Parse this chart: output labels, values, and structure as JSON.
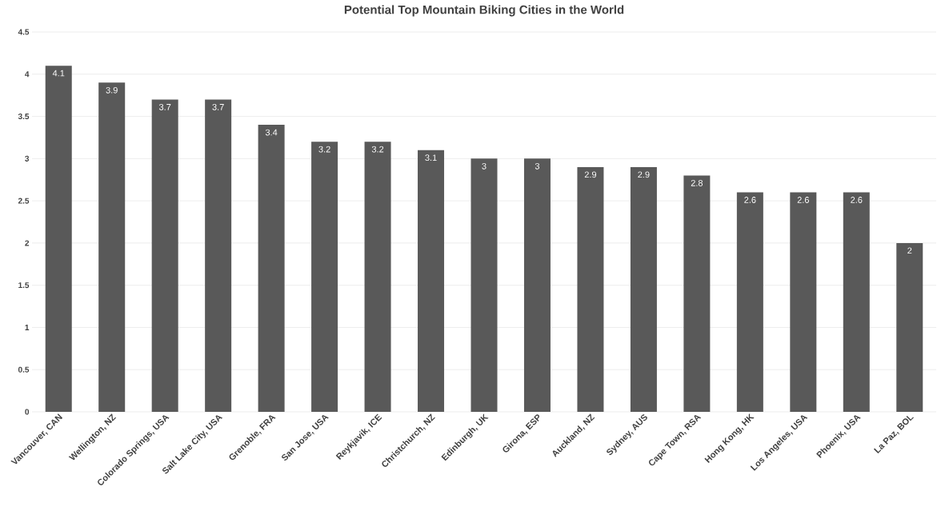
{
  "chart_data": {
    "type": "bar",
    "title": "Potential Top Mountain Biking Cities in the World",
    "categories": [
      "Vancouver, CAN",
      "Wellington, NZ",
      "Colorado Springs, USA",
      "Salt Lake City, USA",
      "Grenoble, FRA",
      "San Jose, USA",
      "Reykjavik, ICE",
      "Christchurch, NZ",
      "Edinburgh, UK",
      "Girona, ESP",
      "Auckland, NZ",
      "Sydney, AUS",
      "Cape Town, RSA",
      "Hong Kong, HK",
      "Los Angeles, USA",
      "Phoenix, USA",
      "La Paz, BOL"
    ],
    "values": [
      4.1,
      3.9,
      3.7,
      3.7,
      3.4,
      3.2,
      3.2,
      3.1,
      3,
      3,
      2.9,
      2.9,
      2.8,
      2.6,
      2.6,
      2.6,
      2
    ],
    "color": "#595959",
    "ylim": [
      0,
      4.5
    ],
    "yticks": [
      0,
      0.5,
      1,
      1.5,
      2,
      2.5,
      3,
      3.5,
      4,
      4.5
    ],
    "grid": "y",
    "data_labels": true
  }
}
